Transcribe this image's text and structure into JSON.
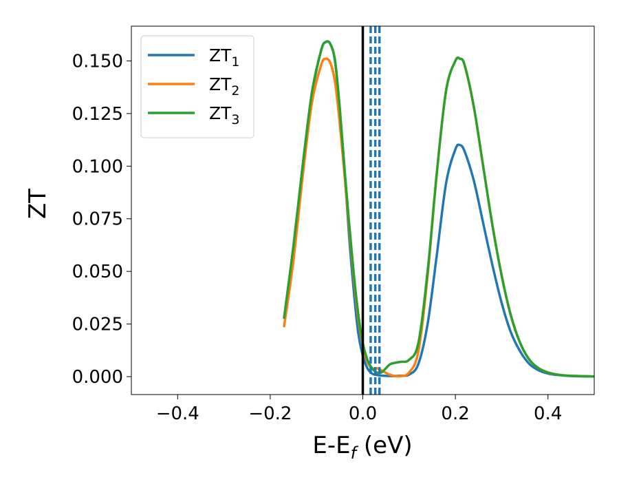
{
  "chart_data": {
    "type": "line",
    "xlabel": {
      "main": "E-E",
      "sub": "f",
      "suffix": " (eV)"
    },
    "ylabel": "ZT",
    "xlim": [
      -0.5,
      0.5
    ],
    "ylim": [
      -0.0085,
      0.1665
    ],
    "x_ticks": [
      -0.4,
      -0.2,
      0.0,
      0.2,
      0.4
    ],
    "x_tick_labels": [
      "−0.4",
      "−0.2",
      "0.0",
      "0.2",
      "0.4"
    ],
    "y_ticks": [
      0.0,
      0.025,
      0.05,
      0.075,
      0.1,
      0.125,
      0.15
    ],
    "y_tick_labels": [
      "0.000",
      "0.025",
      "0.050",
      "0.075",
      "0.100",
      "0.125",
      "0.150"
    ],
    "grid": false,
    "legend_placement": "top-left",
    "vertical_lines": [
      {
        "x": 0.0,
        "style": "solid",
        "color": "#000000"
      },
      {
        "x": 0.017,
        "style": "dashed",
        "color": "#1f77b4"
      },
      {
        "x": 0.027,
        "style": "dashed",
        "color": "#1f77b4"
      },
      {
        "x": 0.036,
        "style": "dashed",
        "color": "#1f77b4"
      }
    ],
    "series": [
      {
        "name": "ZT",
        "name_sub": "1",
        "color": "#1f77b4",
        "x": [
          -0.17,
          -0.15,
          -0.13,
          -0.11,
          -0.09,
          -0.08,
          -0.07,
          -0.06,
          -0.05,
          -0.04,
          -0.03,
          -0.02,
          -0.01,
          0.0,
          0.01,
          0.02,
          0.03,
          0.04,
          0.06,
          0.08,
          0.1,
          0.12,
          0.14,
          0.16,
          0.18,
          0.2,
          0.21,
          0.22,
          0.24,
          0.26,
          0.28,
          0.3,
          0.32,
          0.34,
          0.36,
          0.38,
          0.4,
          0.42,
          0.45,
          0.5
        ],
        "y": [
          0.028,
          0.06,
          0.1,
          0.134,
          0.155,
          0.159,
          0.158,
          0.15,
          0.128,
          0.1,
          0.068,
          0.042,
          0.021,
          0.01,
          0.004,
          0.0015,
          0.0008,
          0.0005,
          0.0003,
          0.0004,
          0.001,
          0.006,
          0.025,
          0.058,
          0.092,
          0.108,
          0.11,
          0.107,
          0.093,
          0.073,
          0.053,
          0.035,
          0.021,
          0.012,
          0.006,
          0.003,
          0.0015,
          0.0008,
          0.0003,
          0.0001
        ]
      },
      {
        "name": "ZT",
        "name_sub": "2",
        "color": "#ff7f0e",
        "x": [
          -0.17,
          -0.15,
          -0.13,
          -0.11,
          -0.09,
          -0.08,
          -0.07,
          -0.06,
          -0.05,
          -0.04,
          -0.03,
          -0.02,
          -0.01,
          0.0,
          0.01,
          0.02,
          0.03,
          0.04,
          0.06,
          0.08,
          0.1,
          0.12,
          0.14,
          0.16,
          0.18,
          0.2,
          0.21,
          0.22,
          0.24,
          0.26,
          0.28,
          0.3,
          0.32,
          0.34,
          0.36,
          0.38,
          0.4,
          0.42,
          0.45,
          0.5
        ],
        "y": [
          0.024,
          0.055,
          0.095,
          0.13,
          0.148,
          0.151,
          0.149,
          0.14,
          0.121,
          0.097,
          0.072,
          0.048,
          0.028,
          0.015,
          0.007,
          0.004,
          0.004,
          0.003,
          0.0008,
          0.0002,
          0.002,
          0.012,
          0.048,
          0.097,
          0.136,
          0.15,
          0.151,
          0.148,
          0.128,
          0.1,
          0.072,
          0.048,
          0.029,
          0.016,
          0.008,
          0.004,
          0.002,
          0.001,
          0.0004,
          0.0001
        ]
      },
      {
        "name": "ZT",
        "name_sub": "3",
        "color": "#2ca02c",
        "x": [
          -0.17,
          -0.15,
          -0.13,
          -0.11,
          -0.09,
          -0.08,
          -0.07,
          -0.06,
          -0.05,
          -0.04,
          -0.03,
          -0.02,
          -0.01,
          0.0,
          0.01,
          0.02,
          0.03,
          0.04,
          0.05,
          0.06,
          0.08,
          0.1,
          0.12,
          0.14,
          0.16,
          0.18,
          0.2,
          0.21,
          0.22,
          0.24,
          0.26,
          0.28,
          0.3,
          0.32,
          0.34,
          0.36,
          0.38,
          0.4,
          0.42,
          0.45,
          0.5
        ],
        "y": [
          0.028,
          0.062,
          0.1,
          0.135,
          0.155,
          0.159,
          0.158,
          0.15,
          0.128,
          0.1,
          0.074,
          0.05,
          0.03,
          0.016,
          0.008,
          0.004,
          0.002,
          0.002,
          0.004,
          0.006,
          0.007,
          0.008,
          0.016,
          0.05,
          0.097,
          0.136,
          0.15,
          0.151,
          0.148,
          0.128,
          0.1,
          0.072,
          0.048,
          0.029,
          0.016,
          0.008,
          0.004,
          0.002,
          0.001,
          0.0004,
          0.0001
        ]
      }
    ]
  }
}
